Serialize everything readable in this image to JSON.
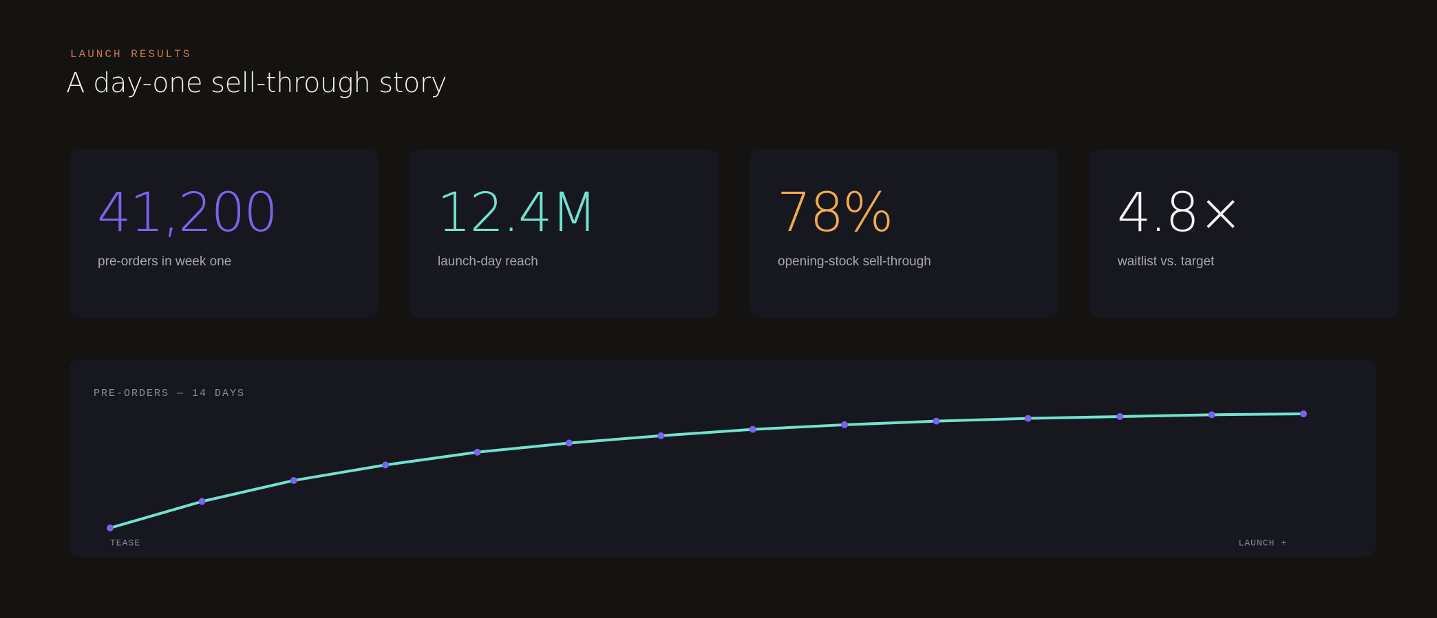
{
  "header": {
    "eyebrow": "LAUNCH RESULTS",
    "title": "A day-one sell-through story"
  },
  "stats": [
    {
      "value": "41,200",
      "label": "pre-orders in week one",
      "color": "#7a63ee"
    },
    {
      "value": "12.4M",
      "label": "launch-day reach",
      "color": "#6fe3cf"
    },
    {
      "value": "78%",
      "label": "opening-stock sell-through",
      "color": "#f2aa4c"
    },
    {
      "value": "4.8×",
      "label": "waitlist vs. target",
      "color": "#f4f4f4"
    }
  ],
  "chart_data": {
    "type": "line",
    "title": "PRE-ORDERS — 14 DAYS",
    "values": [
      0,
      29,
      52,
      69,
      83,
      93,
      101,
      108,
      113,
      117,
      120,
      122,
      124,
      125
    ],
    "color": "#6fe3cf",
    "marker_color": "#7a63ee",
    "x_start_label": "TEASE",
    "x_end_label": "LAUNCH +"
  }
}
